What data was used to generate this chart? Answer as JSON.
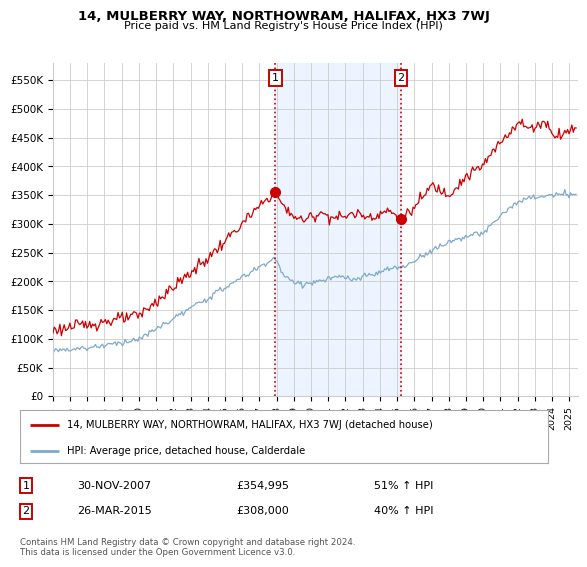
{
  "title": "14, MULBERRY WAY, NORTHOWRAM, HALIFAX, HX3 7WJ",
  "subtitle": "Price paid vs. HM Land Registry's House Price Index (HPI)",
  "ylabel_ticks": [
    "£0",
    "£50K",
    "£100K",
    "£150K",
    "£200K",
    "£250K",
    "£300K",
    "£350K",
    "£400K",
    "£450K",
    "£500K",
    "£550K"
  ],
  "ytick_values": [
    0,
    50000,
    100000,
    150000,
    200000,
    250000,
    300000,
    350000,
    400000,
    450000,
    500000,
    550000
  ],
  "ylim": [
    0,
    580000
  ],
  "xlim_start": 1995.0,
  "xlim_end": 2025.5,
  "xtick_years": [
    1995,
    1996,
    1997,
    1998,
    1999,
    2000,
    2001,
    2002,
    2003,
    2004,
    2005,
    2006,
    2007,
    2008,
    2009,
    2010,
    2011,
    2012,
    2013,
    2014,
    2015,
    2016,
    2017,
    2018,
    2019,
    2020,
    2021,
    2022,
    2023,
    2024,
    2025
  ],
  "red_line_color": "#cc0000",
  "blue_line_color": "#7faacc",
  "transaction1_x": 2007.92,
  "transaction1_y": 354995,
  "transaction1_label": "1",
  "transaction2_x": 2015.23,
  "transaction2_y": 308000,
  "transaction2_label": "2",
  "vspan_color": "#ddeeff",
  "vspan_alpha": 0.55,
  "legend_red_label": "14, MULBERRY WAY, NORTHOWRAM, HALIFAX, HX3 7WJ (detached house)",
  "legend_blue_label": "HPI: Average price, detached house, Calderdale",
  "table_row1": [
    "1",
    "30-NOV-2007",
    "£354,995",
    "51% ↑ HPI"
  ],
  "table_row2": [
    "2",
    "26-MAR-2015",
    "£308,000",
    "40% ↑ HPI"
  ],
  "footnote": "Contains HM Land Registry data © Crown copyright and database right 2024.\nThis data is licensed under the Open Government Licence v3.0.",
  "background_color": "#ffffff",
  "grid_color": "#cccccc"
}
